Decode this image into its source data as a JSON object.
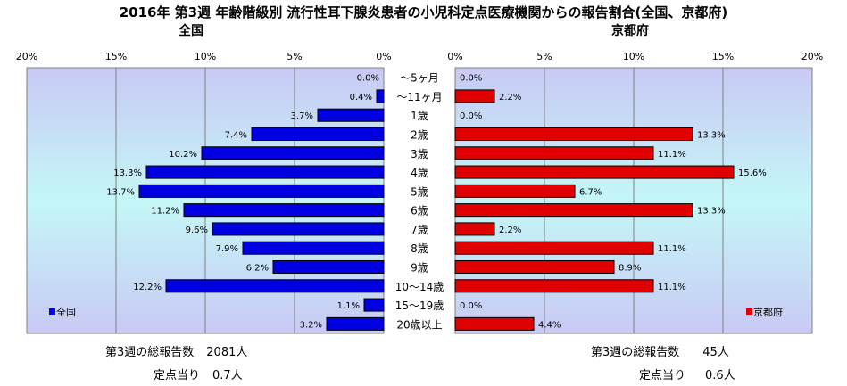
{
  "title": "2016年 第3週 年齢階級別 流行性耳下腺炎患者の小児科定点医療機関からの報告割合(全国、京都府)",
  "left_panel": {
    "title": "全国",
    "stats": {
      "total_label": "第3週の総報告数",
      "total_value": "2081人",
      "perpoint_label": "定点当り",
      "perpoint_value": "0.7人"
    }
  },
  "right_panel": {
    "title": "京都府",
    "stats": {
      "total_label": "第3週の総報告数",
      "total_value": "45人",
      "perpoint_label": "定点当り",
      "perpoint_value": "0.6人"
    }
  },
  "chart_data": {
    "type": "bar",
    "orientation": "horizontal-butterfly",
    "categories": [
      "～5ヶ月",
      "～11ヶ月",
      "1歳",
      "2歳",
      "3歳",
      "4歳",
      "5歳",
      "6歳",
      "7歳",
      "8歳",
      "9歳",
      "10～14歳",
      "15～19歳",
      "20歳以上"
    ],
    "xlim": [
      0,
      20
    ],
    "xticks": [
      "0%",
      "5%",
      "10%",
      "15%",
      "20%"
    ],
    "series": [
      {
        "name": "全国",
        "color": "#0000e0",
        "values": [
          0.0,
          0.4,
          3.7,
          7.4,
          10.2,
          13.3,
          13.7,
          11.2,
          9.6,
          7.9,
          6.2,
          12.2,
          1.1,
          3.2
        ],
        "labels": [
          "0.0%",
          "0.4%",
          "3.7%",
          "7.4%",
          "10.2%",
          "13.3%",
          "13.7%",
          "11.2%",
          "9.6%",
          "7.9%",
          "6.2%",
          "12.2%",
          "1.1%",
          "3.2%"
        ]
      },
      {
        "name": "京都府",
        "color": "#e00000",
        "values": [
          0.0,
          2.2,
          0.0,
          13.3,
          11.1,
          15.6,
          6.7,
          13.3,
          2.2,
          11.1,
          8.9,
          11.1,
          0.0,
          4.4
        ],
        "labels": [
          "0.0%",
          "2.2%",
          "0.0%",
          "13.3%",
          "11.1%",
          "15.6%",
          "6.7%",
          "13.3%",
          "2.2%",
          "11.1%",
          "8.9%",
          "11.1%",
          "0.0%",
          "4.4%"
        ]
      }
    ],
    "grid": true,
    "legend": [
      "bottom-left",
      "bottom-right"
    ]
  }
}
